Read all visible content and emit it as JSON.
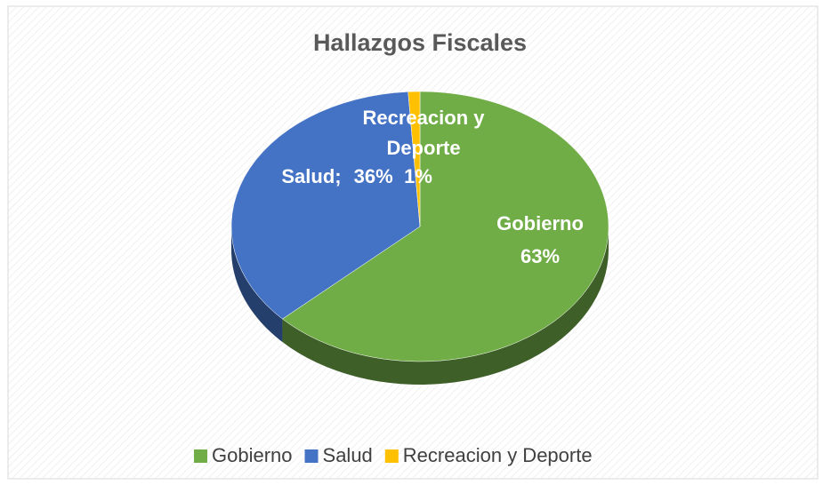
{
  "chart_data": {
    "type": "pie3d",
    "title": "Hallazgos Fiscales",
    "categories": [
      "Gobierno",
      "Salud",
      "Recreacion y Deporte"
    ],
    "values": [
      63,
      36,
      1
    ],
    "value_labels": [
      "63%",
      "36%",
      "1%"
    ],
    "colors": [
      "#70ad47",
      "#4472c4",
      "#ffc000"
    ],
    "data_label_separator": ";",
    "legend": "bottom"
  }
}
